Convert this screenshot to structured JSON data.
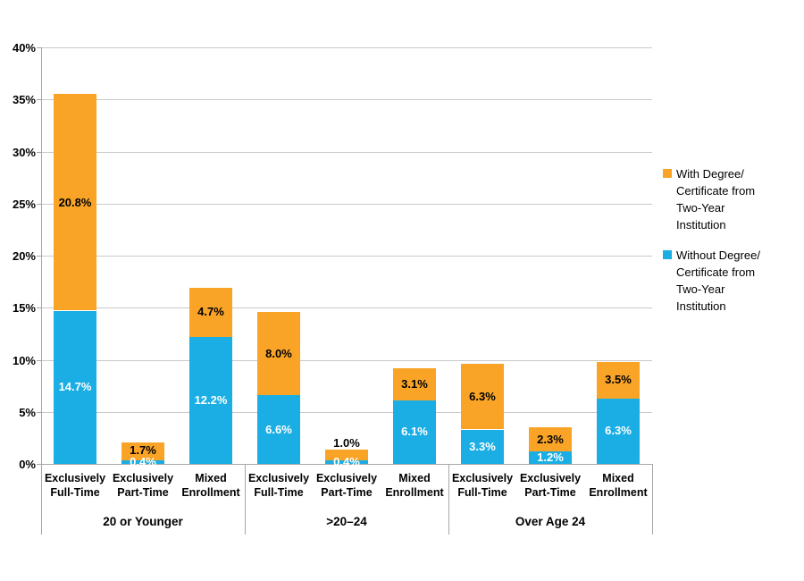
{
  "colors": {
    "with_degree": "#F9A427",
    "without_degree": "#1BAEE4",
    "gridline": "#C9C9C9",
    "axis_line": "#A6A6A6",
    "label_on_without_degree": "#FFFFFF",
    "label_on_with_degree": "#000000",
    "background": "#FFFFFF"
  },
  "legend": {
    "items": [
      {
        "series": "With Degree/Certificate from Two-Year Institution",
        "swatch_color": "#F9A427",
        "lines": [
          "With Degree/",
          "Certificate from",
          "Two-Year",
          "Institution"
        ]
      },
      {
        "series": "Without Degree/Certificate from Two-Year Institution",
        "swatch_color": "#1BAEE4",
        "lines": [
          "Without Degree/",
          "Certificate from",
          "Two-Year",
          "Institution"
        ]
      }
    ]
  },
  "chart_data": {
    "type": "bar",
    "stacked": true,
    "title": "",
    "xlabel": "",
    "ylabel": "",
    "ylim": [
      0,
      40
    ],
    "ytick_step": 5,
    "ytick_labels": [
      "0%",
      "5%",
      "10%",
      "15%",
      "20%",
      "25%",
      "30%",
      "35%",
      "40%"
    ],
    "grid": true,
    "legend_position": "right",
    "value_label_decimals": 1,
    "series_names": [
      "Without Degree/Certificate from Two-Year Institution",
      "With Degree/Certificate from Two-Year Institution"
    ],
    "groups": [
      {
        "label": "20 or Younger",
        "categories": [
          "Exclusively Full-Time",
          "Exclusively Part-Time",
          "Mixed Enrollment"
        ],
        "series": [
          {
            "name": "Without Degree/Certificate from Two-Year Institution",
            "values": [
              14.7,
              0.4,
              12.2
            ]
          },
          {
            "name": "With Degree/Certificate from Two-Year Institution",
            "values": [
              20.8,
              1.7,
              4.7
            ]
          }
        ]
      },
      {
        "label": ">20–24",
        "categories": [
          "Exclusively Full-Time",
          "Exclusively Part-Time",
          "Mixed Enrollment"
        ],
        "series": [
          {
            "name": "Without Degree/Certificate from Two-Year Institution",
            "values": [
              6.6,
              0.4,
              6.1
            ]
          },
          {
            "name": "With Degree/Certificate from Two-Year Institution",
            "values": [
              8.0,
              1.0,
              3.1
            ]
          }
        ]
      },
      {
        "label": "Over Age 24",
        "categories": [
          "Exclusively Full-Time",
          "Exclusively Part-Time",
          "Mixed Enrollment"
        ],
        "series": [
          {
            "name": "Without Degree/Certificate from Two-Year Institution",
            "values": [
              3.3,
              1.2,
              6.3
            ]
          },
          {
            "name": "With Degree/Certificate from Two-Year Institution",
            "values": [
              6.3,
              2.3,
              3.5
            ]
          }
        ]
      }
    ]
  }
}
